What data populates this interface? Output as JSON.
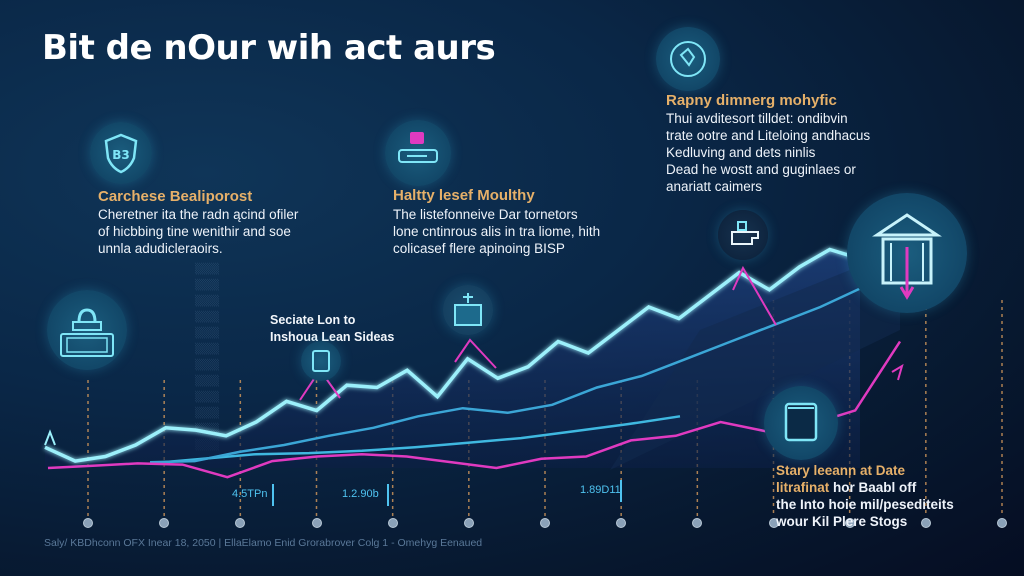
{
  "header": {
    "title": "Bit de nOur wih act aurs"
  },
  "cards": [
    {
      "icon": "shield-icon",
      "title": "Carchese Bealiporost",
      "body": [
        "Cheretner ita the radn ącind ofiler",
        "of hicbbing tine wenithir and soe",
        "unnla adudicleraoirs."
      ]
    },
    {
      "icon": "lock-card-icon",
      "title": "Haltty lesef Moulthy",
      "body": [
        "The listefonneive Dar tornetors",
        "lone cntinrous alis in tra liome, hith",
        "colicasef flere apinoing BISP"
      ]
    },
    {
      "icon": "globe-icon",
      "title": "Rapny dimnerg mohyfic",
      "body": [
        "Thui avditesort tilldet: ondibvin",
        "trate ootre and Liteloing andhacus",
        "Kedluving and dets ninlis",
        "Dead he wostt and guginlaes or",
        "anariatt caimers"
      ]
    },
    {
      "icon": "document-box-icon",
      "title_lines": [
        "Stary leeann at Date",
        "litrafinat"
      ],
      "title_tail": " hor Baabl off",
      "body": [
        "the Into hoie mil/pesediteits",
        "wour Kil Plere Stogs"
      ]
    }
  ],
  "callout": {
    "lines": [
      "Seciate Lon to",
      "Inshoua Lean Sideas"
    ]
  },
  "stats": [
    "4.5TPn",
    "1.2.90b",
    "1.89D11"
  ],
  "footer": "Saly/ KBDhconn OFX Inear 18, 2050 | EllaElamo Enid Grorabrover Colg 1 - Omehyg Eenaued",
  "decorative_icons": [
    "vault-icon",
    "cursor-badge-icon",
    "server-rack-icon",
    "coffee-cup-icon",
    "bank-icon"
  ],
  "colors": {
    "accent_cyan": "#7fe6f7",
    "secondary_blue": "#3ba6d6",
    "magenta": "#e03ac0",
    "title_gold": "#e6b069",
    "background": "#0a2747"
  },
  "chart_data": {
    "type": "line",
    "title": "",
    "x_ticks": 13,
    "series": [
      {
        "name": "primary",
        "color": "#7fe6f7",
        "values": [
          18,
          6,
          10,
          20,
          35,
          33,
          28,
          40,
          58,
          50,
          72,
          70,
          85,
          62,
          95,
          78,
          88,
          110,
          100,
          120,
          140,
          130,
          150,
          170,
          155,
          175,
          190,
          182
        ]
      },
      {
        "name": "secondary",
        "color": "#3ba6d6",
        "values": [
          5,
          6,
          14,
          20,
          28,
          35,
          45,
          52,
          48,
          55,
          70,
          80,
          95,
          110,
          125,
          140,
          158
        ]
      },
      {
        "name": "baseline",
        "color": "#3fb8e0",
        "values": [
          4,
          8,
          12,
          13,
          15,
          18,
          22,
          26,
          32,
          38,
          45
        ]
      },
      {
        "name": "magenta",
        "color": "#e03ac0",
        "values": [
          0,
          2,
          4,
          3,
          -8,
          6,
          10,
          12,
          10,
          5,
          0,
          8,
          10,
          24,
          28,
          40,
          32,
          38,
          50,
          110
        ]
      }
    ]
  }
}
